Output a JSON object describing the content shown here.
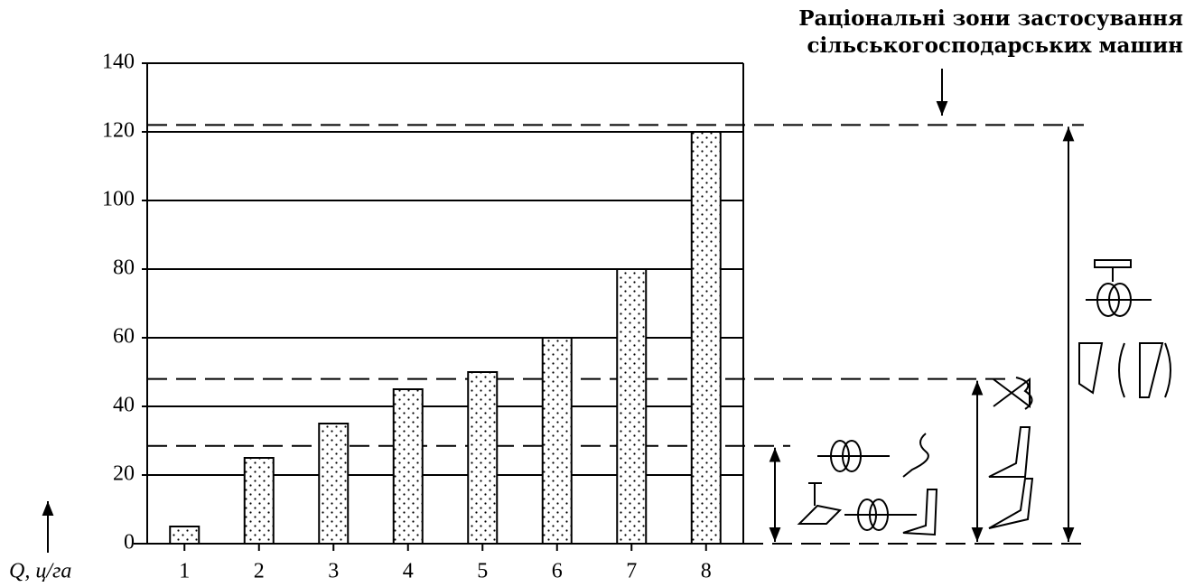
{
  "chart_data": {
    "type": "bar",
    "annotation": [
      "Раціональні зони застосування",
      "сільськогосподарських машин"
    ],
    "y_label": "Q, ц/га",
    "categories": [
      "1",
      "2",
      "3",
      "4",
      "5",
      "6",
      "7",
      "8"
    ],
    "values": [
      5,
      25,
      35,
      45,
      50,
      60,
      80,
      120
    ],
    "ylim": [
      0,
      140
    ],
    "yticks": [
      0,
      20,
      40,
      60,
      80,
      100,
      120,
      140
    ],
    "grid": true,
    "zone_limits": [
      28.5,
      48,
      122
    ]
  }
}
